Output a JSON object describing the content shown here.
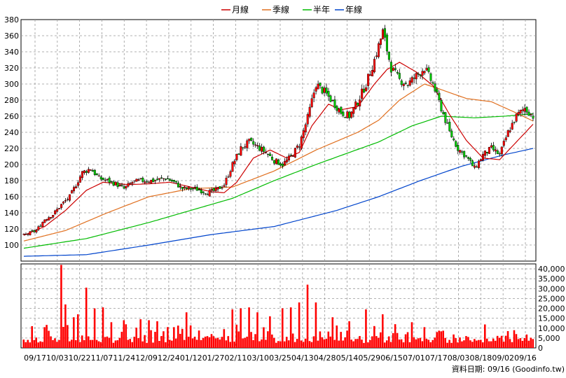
{
  "chart_data": {
    "type": "candlestick",
    "legend": [
      {
        "label": "月線",
        "color": "#cc0000"
      },
      {
        "label": "季線",
        "color": "#e07020"
      },
      {
        "label": "半年",
        "color": "#00bb00"
      },
      {
        "label": "年線",
        "color": "#0044cc"
      }
    ],
    "price_axis": {
      "ylim": [
        80,
        380
      ],
      "ticks": [
        100,
        120,
        140,
        160,
        180,
        200,
        220,
        240,
        260,
        280,
        300,
        320,
        340,
        360,
        380
      ]
    },
    "volume_axis": {
      "ylim": [
        0,
        42500
      ],
      "ticks": [
        "0",
        "5,000",
        "10,000",
        "15,000",
        "20,000",
        "25,000",
        "30,000",
        "35,000",
        "40,000"
      ],
      "tick_values": [
        0,
        5000,
        10000,
        15000,
        20000,
        25000,
        30000,
        35000,
        40000
      ]
    },
    "x_ticks": [
      "09/17",
      "10/03",
      "10/22",
      "11/07",
      "11/24",
      "12/09",
      "12/24",
      "01/12",
      "01/27",
      "02/11",
      "03/10",
      "03/25",
      "04/13",
      "04/28",
      "05/14",
      "05/29",
      "06/15",
      "07/01",
      "07/17",
      "08/03",
      "08/18",
      "09/02",
      "09/16"
    ],
    "footer": "資料日期: 09/16  (Goodinfo.tw)",
    "close_anchors": [
      [
        0,
        112
      ],
      [
        6,
        118
      ],
      [
        10,
        132
      ],
      [
        14,
        138
      ],
      [
        18,
        150
      ],
      [
        22,
        160
      ],
      [
        25,
        175
      ],
      [
        28,
        190
      ],
      [
        32,
        195
      ],
      [
        36,
        183
      ],
      [
        40,
        180
      ],
      [
        44,
        176
      ],
      [
        48,
        170
      ],
      [
        52,
        178
      ],
      [
        56,
        180
      ],
      [
        62,
        180
      ],
      [
        68,
        183
      ],
      [
        72,
        178
      ],
      [
        76,
        170
      ],
      [
        82,
        170
      ],
      [
        88,
        165
      ],
      [
        92,
        168
      ],
      [
        96,
        175
      ],
      [
        100,
        200
      ],
      [
        104,
        220
      ],
      [
        108,
        228
      ],
      [
        112,
        222
      ],
      [
        116,
        215
      ],
      [
        120,
        205
      ],
      [
        124,
        200
      ],
      [
        128,
        210
      ],
      [
        132,
        225
      ],
      [
        136,
        258
      ],
      [
        140,
        300
      ],
      [
        144,
        290
      ],
      [
        148,
        278
      ],
      [
        152,
        265
      ],
      [
        156,
        260
      ],
      [
        160,
        278
      ],
      [
        164,
        300
      ],
      [
        168,
        330
      ],
      [
        172,
        365
      ],
      [
        176,
        320
      ],
      [
        180,
        305
      ],
      [
        184,
        300
      ],
      [
        188,
        310
      ],
      [
        192,
        320
      ],
      [
        196,
        300
      ],
      [
        200,
        270
      ],
      [
        204,
        240
      ],
      [
        208,
        220
      ],
      [
        212,
        210
      ],
      [
        216,
        195
      ],
      [
        220,
        212
      ],
      [
        224,
        220
      ],
      [
        228,
        212
      ],
      [
        232,
        240
      ],
      [
        236,
        260
      ],
      [
        240,
        270
      ],
      [
        244,
        260
      ]
    ],
    "ma_month": [
      [
        0,
        112
      ],
      [
        10,
        123
      ],
      [
        20,
        143
      ],
      [
        30,
        168
      ],
      [
        38,
        178
      ],
      [
        50,
        175
      ],
      [
        60,
        176
      ],
      [
        70,
        178
      ],
      [
        80,
        172
      ],
      [
        90,
        166
      ],
      [
        96,
        165
      ],
      [
        102,
        178
      ],
      [
        110,
        208
      ],
      [
        118,
        218
      ],
      [
        126,
        208
      ],
      [
        132,
        215
      ],
      [
        138,
        248
      ],
      [
        146,
        275
      ],
      [
        152,
        268
      ],
      [
        160,
        272
      ],
      [
        168,
        300
      ],
      [
        174,
        318
      ],
      [
        180,
        327
      ],
      [
        188,
        315
      ],
      [
        196,
        298
      ],
      [
        204,
        262
      ],
      [
        212,
        230
      ],
      [
        220,
        208
      ],
      [
        228,
        206
      ],
      [
        236,
        228
      ],
      [
        244,
        250
      ]
    ],
    "ma_season": [
      [
        0,
        105
      ],
      [
        20,
        118
      ],
      [
        40,
        140
      ],
      [
        60,
        160
      ],
      [
        80,
        170
      ],
      [
        100,
        172
      ],
      [
        120,
        192
      ],
      [
        140,
        218
      ],
      [
        160,
        240
      ],
      [
        170,
        255
      ],
      [
        180,
        280
      ],
      [
        192,
        300
      ],
      [
        200,
        293
      ],
      [
        212,
        282
      ],
      [
        224,
        278
      ],
      [
        236,
        264
      ],
      [
        244,
        254
      ]
    ],
    "ma_half": [
      [
        0,
        96
      ],
      [
        30,
        108
      ],
      [
        60,
        128
      ],
      [
        80,
        143
      ],
      [
        100,
        158
      ],
      [
        120,
        180
      ],
      [
        140,
        200
      ],
      [
        156,
        215
      ],
      [
        170,
        228
      ],
      [
        186,
        248
      ],
      [
        200,
        260
      ],
      [
        216,
        258
      ],
      [
        230,
        260
      ],
      [
        244,
        263
      ]
    ],
    "ma_year": [
      [
        0,
        86
      ],
      [
        30,
        88
      ],
      [
        60,
        100
      ],
      [
        90,
        113
      ],
      [
        120,
        123
      ],
      [
        150,
        143
      ],
      [
        170,
        160
      ],
      [
        190,
        180
      ],
      [
        210,
        198
      ],
      [
        230,
        212
      ],
      [
        244,
        220
      ]
    ],
    "volume_spikes": [
      [
        4,
        11000
      ],
      [
        10,
        10500
      ],
      [
        18,
        42000
      ],
      [
        20,
        22000
      ],
      [
        24,
        15500
      ],
      [
        26,
        17000
      ],
      [
        30,
        30500
      ],
      [
        34,
        20000
      ],
      [
        38,
        20500
      ],
      [
        42,
        13000
      ],
      [
        48,
        14000
      ],
      [
        56,
        14500
      ],
      [
        60,
        14000
      ],
      [
        64,
        13500
      ],
      [
        72,
        10500
      ],
      [
        78,
        18000
      ],
      [
        84,
        8800
      ],
      [
        90,
        7000
      ],
      [
        96,
        9500
      ],
      [
        100,
        19500
      ],
      [
        104,
        20000
      ],
      [
        108,
        20500
      ],
      [
        112,
        18000
      ],
      [
        118,
        16000
      ],
      [
        124,
        20000
      ],
      [
        128,
        20500
      ],
      [
        132,
        23000
      ],
      [
        136,
        32000
      ],
      [
        140,
        23000
      ],
      [
        148,
        15500
      ],
      [
        156,
        13500
      ],
      [
        164,
        19500
      ],
      [
        172,
        17000
      ],
      [
        178,
        12000
      ],
      [
        186,
        13000
      ],
      [
        192,
        10500
      ],
      [
        198,
        8000
      ],
      [
        206,
        6800
      ],
      [
        212,
        6000
      ],
      [
        218,
        4000
      ],
      [
        226,
        3600
      ],
      [
        232,
        8500
      ],
      [
        236,
        7000
      ],
      [
        240,
        5000
      ],
      [
        244,
        4500
      ]
    ]
  }
}
